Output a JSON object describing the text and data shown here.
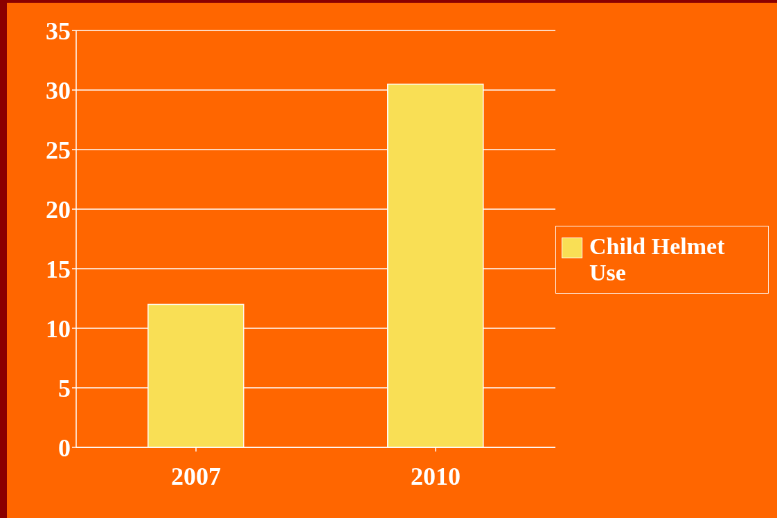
{
  "chart_data": {
    "type": "bar",
    "categories": [
      "2007",
      "2010"
    ],
    "series": [
      {
        "name": "Child Helmet Use",
        "color": "#f9df55",
        "values": [
          12,
          30.5
        ]
      }
    ],
    "ylim": [
      0,
      35
    ],
    "yticks": [
      0,
      5,
      10,
      15,
      20,
      25,
      30,
      35
    ],
    "grid": "y",
    "legend": "right"
  }
}
